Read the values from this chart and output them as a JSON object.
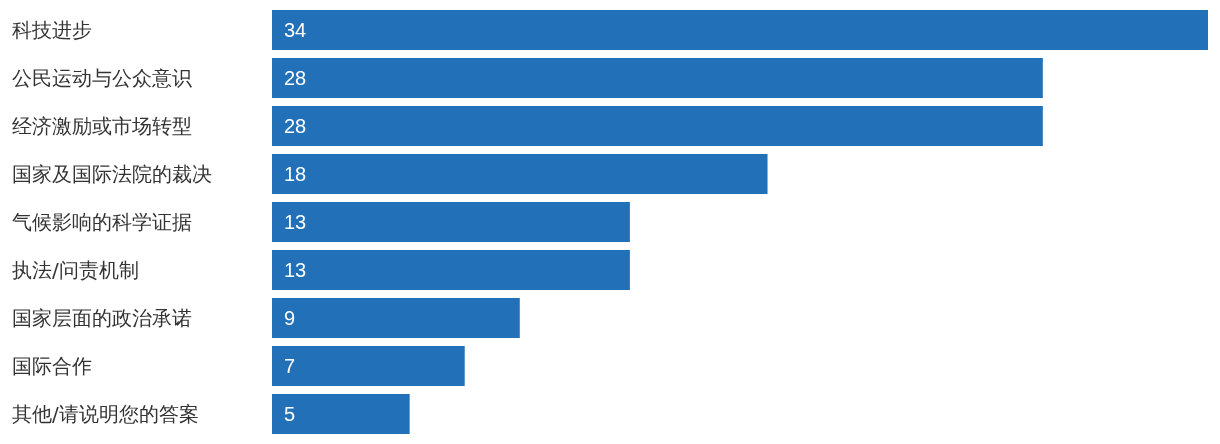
{
  "chart_data": {
    "type": "bar",
    "orientation": "horizontal",
    "categories": [
      "科技进步",
      "公民运动与公众意识",
      "经济激励或市场转型",
      "国家及国际法院的裁决",
      "气候影响的科学证据",
      "执法/问责机制",
      "国家层面的政治承诺",
      "国际合作",
      "其他/请说明您的答案"
    ],
    "values": [
      34,
      28,
      28,
      18,
      13,
      13,
      9,
      7,
      5
    ],
    "color": "#2271b8",
    "data_labels": true
  }
}
